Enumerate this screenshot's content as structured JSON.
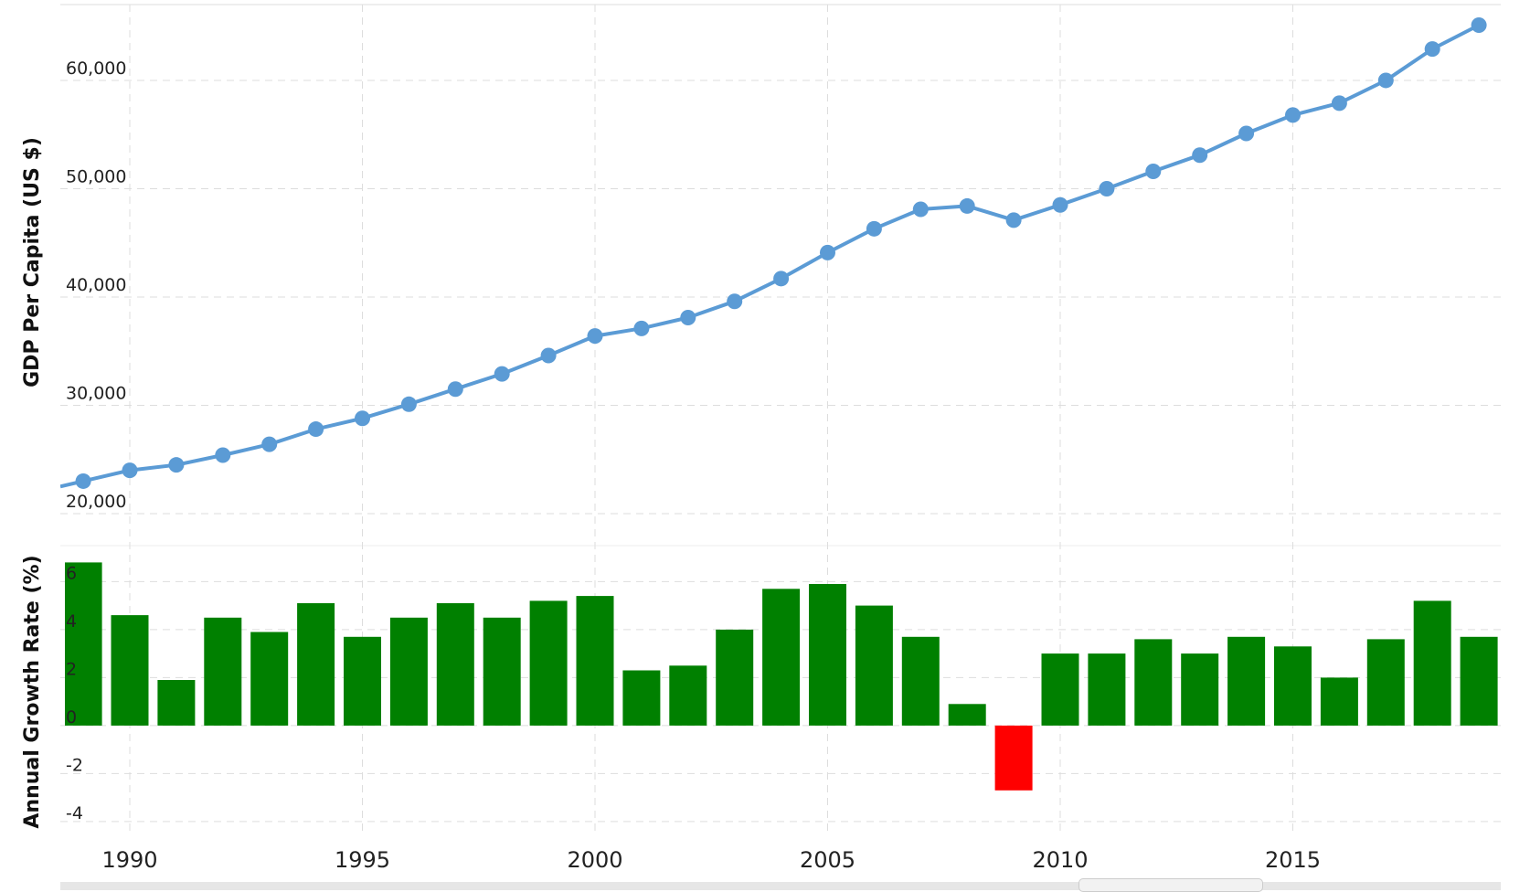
{
  "chart_data": [
    {
      "type": "line",
      "ylabel": "GDP Per Capita (US $)",
      "ylim": [
        20000,
        67000
      ],
      "yticks": [
        20000,
        30000,
        40000,
        50000,
        60000
      ],
      "ytick_labels": [
        "20,000",
        "30,000",
        "40,000",
        "50,000",
        "60,000"
      ],
      "color": "#5b9bd5",
      "grid": true,
      "x": [
        1989,
        1990,
        1991,
        1992,
        1993,
        1994,
        1995,
        1996,
        1997,
        1998,
        1999,
        2000,
        2001,
        2002,
        2003,
        2004,
        2005,
        2006,
        2007,
        2008,
        2009,
        2010,
        2011,
        2012,
        2013,
        2014,
        2015,
        2016,
        2017,
        2018,
        2019
      ],
      "values": [
        23000,
        24000,
        24500,
        25400,
        26400,
        27800,
        28800,
        30100,
        31500,
        32900,
        34600,
        36400,
        37100,
        38100,
        39600,
        41700,
        44100,
        46300,
        48100,
        48400,
        47100,
        48500,
        50000,
        51600,
        53100,
        55100,
        56800,
        57900,
        60000,
        62900,
        65100
      ]
    },
    {
      "type": "bar",
      "ylabel": "Annual Growth Rate (%)",
      "ylim": [
        -4.5,
        7.5
      ],
      "yticks": [
        -4,
        -2,
        0,
        2,
        4,
        6
      ],
      "ytick_labels": [
        "-4",
        "-2",
        "0",
        "2",
        "4",
        "6"
      ],
      "positive_color": "#008000",
      "negative_color": "#ff0000",
      "grid": true,
      "x": [
        1989,
        1990,
        1991,
        1992,
        1993,
        1994,
        1995,
        1996,
        1997,
        1998,
        1999,
        2000,
        2001,
        2002,
        2003,
        2004,
        2005,
        2006,
        2007,
        2008,
        2009,
        2010,
        2011,
        2012,
        2013,
        2014,
        2015,
        2016,
        2017,
        2018,
        2019
      ],
      "values": [
        6.8,
        4.6,
        1.9,
        4.5,
        3.9,
        5.1,
        3.7,
        4.5,
        5.1,
        4.5,
        5.2,
        5.4,
        2.3,
        2.5,
        4.0,
        5.7,
        5.9,
        5.0,
        3.7,
        0.9,
        -2.7,
        3.0,
        3.0,
        3.6,
        3.0,
        3.7,
        3.3,
        2.0,
        3.6,
        5.2,
        3.7
      ]
    }
  ],
  "x_axis": {
    "ticks": [
      1990,
      1995,
      2000,
      2005,
      2010,
      2015
    ],
    "tick_labels": [
      "1990",
      "1995",
      "2000",
      "2005",
      "2010",
      "2015"
    ]
  }
}
